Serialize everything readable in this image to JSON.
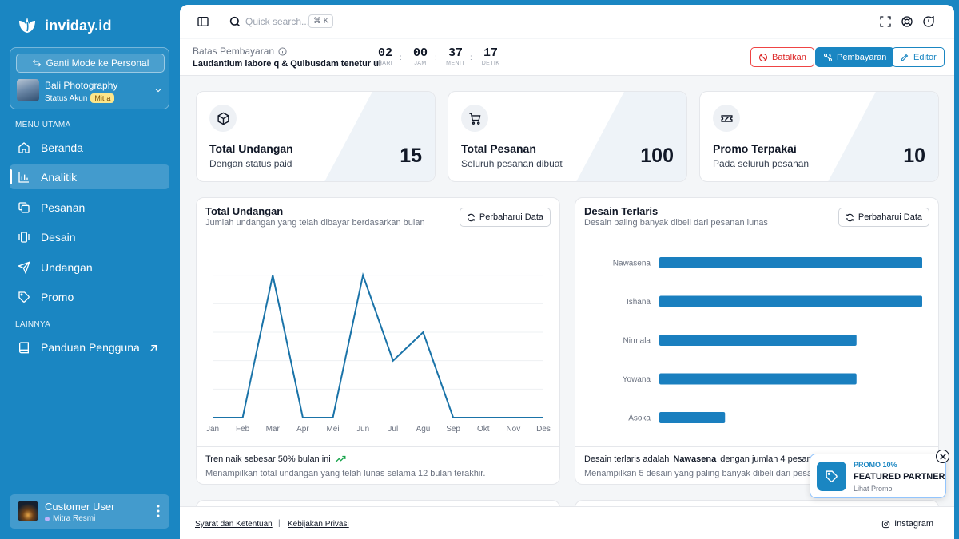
{
  "brand": {
    "name": "inviday.id"
  },
  "account": {
    "switch_label": "Ganti Mode ke Personal",
    "name": "Bali Photography",
    "status_label": "Status Akun",
    "status_badge": "Mitra"
  },
  "nav": {
    "main_label": "MENU UTAMA",
    "items": [
      {
        "label": "Beranda",
        "icon": "home-icon"
      },
      {
        "label": "Analitik",
        "icon": "chart-icon",
        "active": true
      },
      {
        "label": "Pesanan",
        "icon": "copy-icon"
      },
      {
        "label": "Desain",
        "icon": "gallery-icon"
      },
      {
        "label": "Undangan",
        "icon": "send-icon"
      },
      {
        "label": "Promo",
        "icon": "tag-icon"
      }
    ],
    "other_label": "LAINNYA",
    "guide_label": "Panduan Pengguna"
  },
  "user": {
    "name": "Customer User",
    "role": "Mitra Resmi"
  },
  "topbar": {
    "search_placeholder": "Quick search...",
    "shortcut": "⌘ K"
  },
  "banner": {
    "title": "Batas Pembayaran",
    "subtitle": "Laudantium labore q & Quibusdam tenetur ul",
    "countdown": [
      {
        "value": "02",
        "label": "HARI"
      },
      {
        "value": "00",
        "label": "JAM"
      },
      {
        "value": "37",
        "label": "MENIT"
      },
      {
        "value": "17",
        "label": "DETIK"
      }
    ],
    "cancel_label": "Batalkan",
    "pay_label": "Pembayaran",
    "editor_label": "Editor"
  },
  "stats": [
    {
      "title": "Total Undangan",
      "subtitle": "Dengan status paid",
      "value": "15"
    },
    {
      "title": "Total Pesanan",
      "subtitle": "Seluruh pesanan dibuat",
      "value": "100"
    },
    {
      "title": "Promo Terpakai",
      "subtitle": "Pada seluruh pesanan",
      "value": "10"
    }
  ],
  "line_panel": {
    "title": "Total Undangan",
    "description": "Jumlah undangan yang telah dibayar berdasarkan bulan",
    "refresh_label": "Perbaharui Data",
    "footer_main": "Tren naik sebesar 50% bulan ini",
    "footer_sub": "Menampilkan total undangan yang telah lunas selama 12 bulan terakhir."
  },
  "bar_panel": {
    "title": "Desain Terlaris",
    "description": "Desain paling banyak dibeli dari pesanan lunas",
    "refresh_label": "Perbaharui Data",
    "footer_prefix": "Desain terlaris adalah",
    "footer_highlight": "Nawasena",
    "footer_suffix": "dengan jumlah 4 pesanan.",
    "footer_sub": "Menampilkan 5 desain yang paling banyak dibeli dari pesanan lunas."
  },
  "chart_data": [
    {
      "type": "line",
      "categories": [
        "Jan",
        "Feb",
        "Mar",
        "Apr",
        "Mei",
        "Jun",
        "Jul",
        "Agu",
        "Sep",
        "Okt",
        "Nov",
        "Des"
      ],
      "values": [
        0,
        0,
        5,
        0,
        0,
        5,
        2,
        3,
        0,
        0,
        0,
        0
      ],
      "ylim": [
        0,
        6
      ],
      "grid": true,
      "color": "#1a73a8"
    },
    {
      "type": "bar",
      "orientation": "horizontal",
      "categories": [
        "Nawasena",
        "Ishana",
        "Nirmala",
        "Yowana",
        "Asoka"
      ],
      "values": [
        4,
        4,
        3,
        3,
        1
      ],
      "xlim": [
        0,
        4
      ],
      "color": "#1a7fbf"
    }
  ],
  "footer": {
    "terms": "Syarat dan Ketentuan",
    "privacy": "Kebijakan Privasi",
    "instagram": "Instagram"
  },
  "promo": {
    "tag": "PROMO 10%",
    "title": "FEATURED PARTNER",
    "link": "Lihat Promo"
  }
}
